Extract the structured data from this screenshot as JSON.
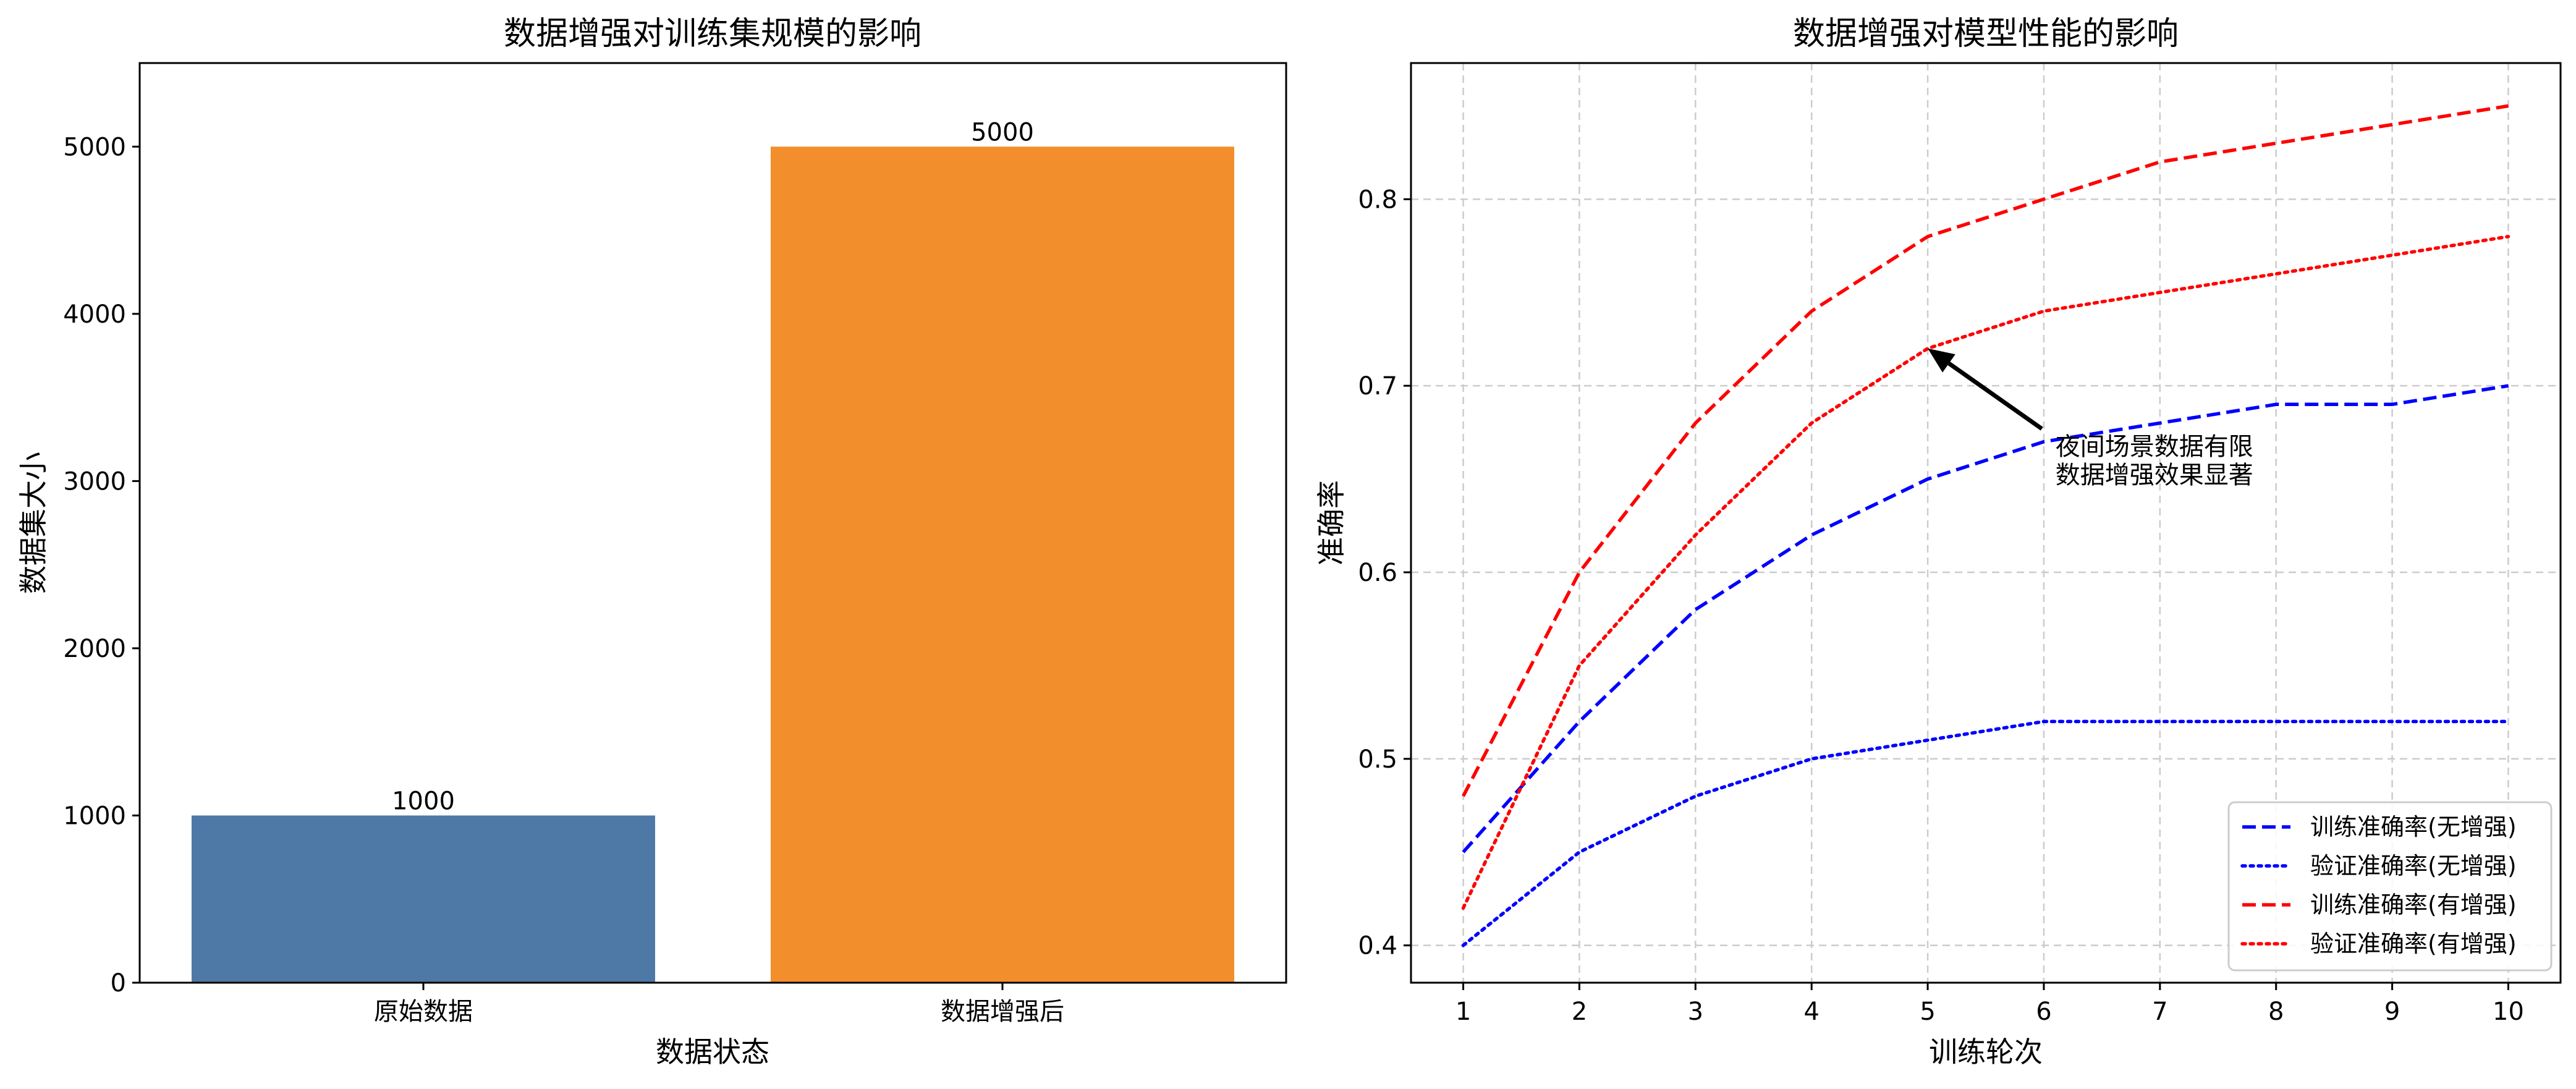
{
  "chart_data": [
    {
      "type": "bar",
      "title": "数据增强对训练集规模的影响",
      "xlabel": "数据状态",
      "ylabel": "数据集大小",
      "categories": [
        "原始数据",
        "数据增强后"
      ],
      "values": [
        1000,
        5000
      ],
      "value_labels": [
        "1000",
        "5000"
      ],
      "colors": [
        "#4e79a7",
        "#f28e2b"
      ],
      "ylim": [
        0,
        5500
      ],
      "yticks": [
        0,
        1000,
        2000,
        3000,
        4000,
        5000
      ],
      "ytick_labels": [
        "0",
        "1000",
        "2000",
        "3000",
        "4000",
        "5000"
      ],
      "grid": false
    },
    {
      "type": "line",
      "title": "数据增强对模型性能的影响",
      "xlabel": "训练轮次",
      "ylabel": "准确率",
      "x": [
        1,
        2,
        3,
        4,
        5,
        6,
        7,
        8,
        9,
        10
      ],
      "xlim": [
        0.55,
        10.45
      ],
      "ylim": [
        0.38,
        0.873
      ],
      "xticks": [
        1,
        2,
        3,
        4,
        5,
        6,
        7,
        8,
        9,
        10
      ],
      "xtick_labels": [
        "1",
        "2",
        "3",
        "4",
        "5",
        "6",
        "7",
        "8",
        "9",
        "10"
      ],
      "yticks": [
        0.4,
        0.5,
        0.6,
        0.7,
        0.8
      ],
      "ytick_labels": [
        "0.4",
        "0.5",
        "0.6",
        "0.7",
        "0.8"
      ],
      "grid": true,
      "legend_position": "lower-right",
      "series": [
        {
          "name": "训练准确率(无增强)",
          "values": [
            0.45,
            0.52,
            0.58,
            0.62,
            0.65,
            0.67,
            0.68,
            0.69,
            0.69,
            0.7
          ],
          "color": "#0000ff",
          "style": "dashed"
        },
        {
          "name": "验证准确率(无增强)",
          "values": [
            0.4,
            0.45,
            0.48,
            0.5,
            0.51,
            0.52,
            0.52,
            0.52,
            0.52,
            0.52
          ],
          "color": "#0000ff",
          "style": "dotted"
        },
        {
          "name": "训练准确率(有增强)",
          "values": [
            0.48,
            0.6,
            0.68,
            0.74,
            0.78,
            0.8,
            0.82,
            0.83,
            0.84,
            0.85
          ],
          "color": "#ff0000",
          "style": "dashed"
        },
        {
          "name": "验证准确率(有增强)",
          "values": [
            0.42,
            0.55,
            0.62,
            0.68,
            0.72,
            0.74,
            0.75,
            0.76,
            0.77,
            0.78
          ],
          "color": "#ff0000",
          "style": "dotted"
        }
      ],
      "annotation": {
        "lines": [
          "夜间场景数据有限",
          "数据增强效果显著"
        ],
        "point": [
          5,
          0.72
        ],
        "text_at": [
          6.1,
          0.667
        ]
      }
    }
  ]
}
